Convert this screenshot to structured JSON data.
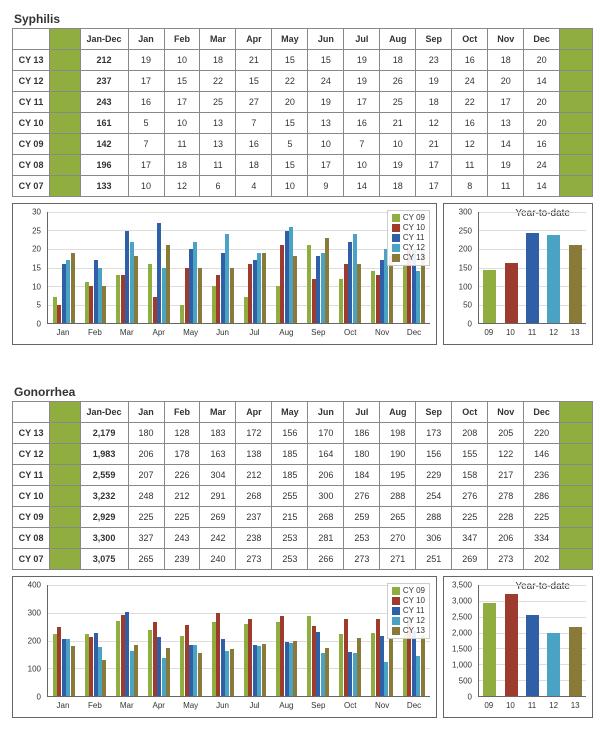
{
  "months": [
    "Jan",
    "Feb",
    "Mar",
    "Apr",
    "May",
    "Jun",
    "Jul",
    "Aug",
    "Sep",
    "Oct",
    "Nov",
    "Dec"
  ],
  "series_colors": {
    "CY 09": "#8fae3f",
    "CY 10": "#9c3b2e",
    "CY 11": "#2f5fa6",
    "CY 12": "#4aa3c4",
    "CY 13": "#8a7a3a"
  },
  "background_color": "#ffffff",
  "grid_color": "#dddddd",
  "axis_color": "#666666",
  "title_fontsize": 12,
  "label_fontsize": 9,
  "diseases": [
    {
      "name": "Syphilis",
      "row_labels": [
        "CY 13",
        "CY 12",
        "CY 11",
        "CY 10",
        "CY 09",
        "CY 08",
        "CY 07"
      ],
      "jan_dec_label": "Jan-Dec",
      "jan_dec": [
        212,
        237,
        243,
        161,
        142,
        196,
        133
      ],
      "rows": [
        [
          19,
          10,
          18,
          21,
          15,
          15,
          19,
          18,
          23,
          16,
          18,
          20
        ],
        [
          17,
          15,
          22,
          15,
          22,
          24,
          19,
          26,
          19,
          24,
          20,
          14
        ],
        [
          16,
          17,
          25,
          27,
          20,
          19,
          17,
          25,
          18,
          22,
          17,
          20
        ],
        [
          5,
          10,
          13,
          7,
          15,
          13,
          16,
          21,
          12,
          16,
          13,
          20
        ],
        [
          7,
          11,
          13,
          16,
          5,
          10,
          7,
          10,
          21,
          12,
          14,
          16
        ],
        [
          17,
          18,
          11,
          18,
          15,
          17,
          10,
          19,
          17,
          11,
          19,
          24
        ],
        [
          10,
          12,
          6,
          4,
          10,
          9,
          14,
          18,
          17,
          8,
          11,
          14
        ]
      ],
      "monthly_chart": {
        "type": "bar",
        "ylim": [
          0,
          30
        ],
        "ytick_step": 5,
        "legend_series": [
          "CY 09",
          "CY 10",
          "CY 11",
          "CY 12",
          "CY 13"
        ]
      },
      "ytd_chart": {
        "title": "Year-to-date",
        "type": "bar",
        "ylim": [
          0,
          300
        ],
        "ytick_step": 50,
        "x_labels": [
          "09",
          "10",
          "11",
          "12",
          "13"
        ],
        "series": [
          "CY 09",
          "CY 10",
          "CY 11",
          "CY 12",
          "CY 13"
        ],
        "values": [
          142,
          161,
          243,
          237,
          212
        ]
      }
    },
    {
      "name": "Gonorrhea",
      "row_labels": [
        "CY 13",
        "CY 12",
        "CY 11",
        "CY 10",
        "CY 09",
        "CY 08",
        "CY 07"
      ],
      "jan_dec_label": "Jan-Dec",
      "jan_dec": [
        2179,
        1983,
        2559,
        3232,
        2929,
        3300,
        3075
      ],
      "rows": [
        [
          180,
          128,
          183,
          172,
          156,
          170,
          186,
          198,
          173,
          208,
          205,
          220
        ],
        [
          206,
          178,
          163,
          138,
          185,
          164,
          180,
          190,
          156,
          155,
          122,
          146
        ],
        [
          207,
          226,
          304,
          212,
          185,
          206,
          184,
          195,
          229,
          158,
          217,
          236
        ],
        [
          248,
          212,
          291,
          268,
          255,
          300,
          276,
          288,
          254,
          276,
          278,
          286
        ],
        [
          225,
          225,
          269,
          237,
          215,
          268,
          259,
          265,
          288,
          225,
          228,
          225
        ],
        [
          327,
          243,
          242,
          238,
          253,
          281,
          253,
          270,
          306,
          347,
          206,
          334
        ],
        [
          265,
          239,
          240,
          273,
          253,
          266,
          273,
          271,
          251,
          269,
          273,
          202
        ]
      ],
      "monthly_chart": {
        "type": "bar",
        "ylim": [
          0,
          400
        ],
        "ytick_step": 100,
        "legend_series": [
          "CY 09",
          "CY 10",
          "CY 11",
          "CY 12",
          "CY 13"
        ]
      },
      "ytd_chart": {
        "title": "Year-to-date",
        "type": "bar",
        "ylim": [
          0,
          3500
        ],
        "ytick_step": 500,
        "x_labels": [
          "09",
          "10",
          "11",
          "12",
          "13"
        ],
        "series": [
          "CY 09",
          "CY 10",
          "CY 11",
          "CY 12",
          "CY 13"
        ],
        "values": [
          2929,
          3232,
          2559,
          1983,
          2179
        ]
      }
    }
  ]
}
